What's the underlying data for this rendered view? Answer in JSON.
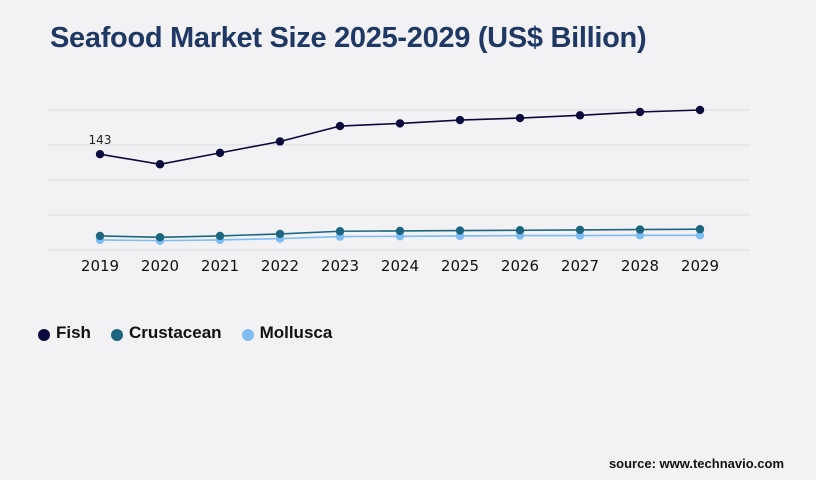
{
  "title": "Seafood Market Size 2025-2029 (US$ Billion)",
  "source": "source: www.technavio.com",
  "chart_data": {
    "type": "line",
    "title": "Seafood Market Size 2025-2029 (US$ Billion)",
    "xlabel": "",
    "ylabel": "",
    "x": [
      "2019",
      "2020",
      "2021",
      "2022",
      "2023",
      "2024",
      "2025",
      "2026",
      "2027",
      "2028",
      "2029"
    ],
    "ylim": [
      0,
      209
    ],
    "grid": true,
    "legend_position": "bottom-left",
    "series": [
      {
        "name": "Fish",
        "color": "#0a0a3c",
        "values": [
          143,
          128,
          145,
          162,
          185,
          189,
          194,
          197,
          201,
          206,
          209
        ]
      },
      {
        "name": "Crustacean",
        "color": "#1d6680",
        "values": [
          21,
          19,
          21,
          24,
          28,
          28.5,
          29,
          29.5,
          30,
          30.5,
          31
        ]
      },
      {
        "name": "Mollusca",
        "color": "#7dbcf5",
        "values": [
          15,
          14,
          15,
          17,
          20,
          20.5,
          21,
          21.5,
          21.5,
          22,
          22
        ]
      }
    ],
    "annotations": [
      {
        "series": "Fish",
        "x": "2019",
        "text": "143"
      }
    ]
  }
}
